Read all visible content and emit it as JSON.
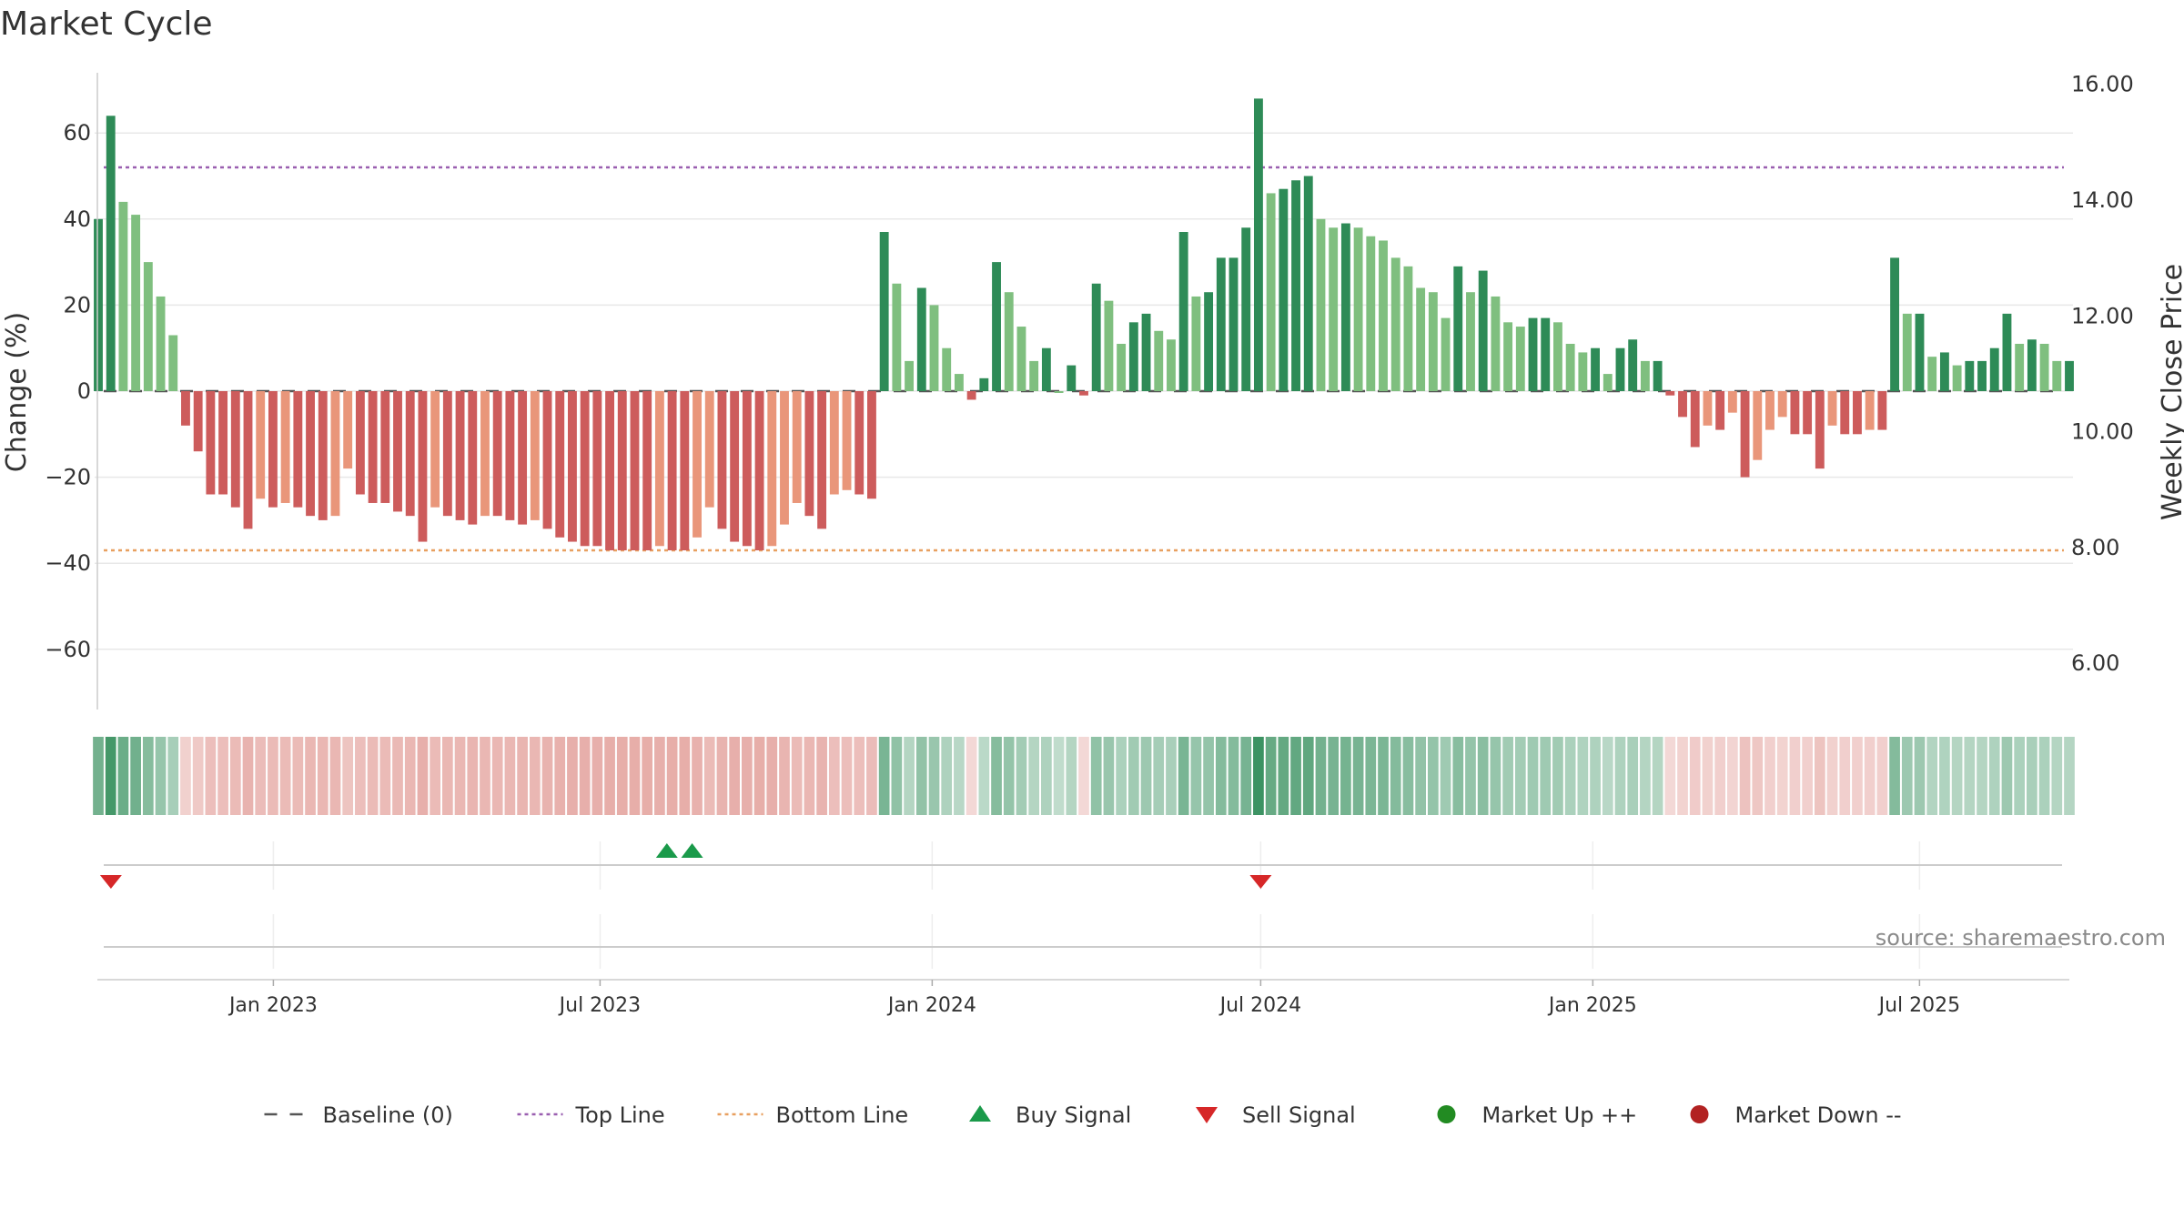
{
  "chart_data": {
    "type": "bar",
    "title": "Market Cycle",
    "ylabel_left": "Change (%)",
    "ylabel_right": "Weekly Close Price",
    "ylim_left": [
      -74,
      74
    ],
    "ylim_right": [
      5.2,
      16.2
    ],
    "yticks_left": [
      {
        "value": 60,
        "label": "60"
      },
      {
        "value": 40,
        "label": "40"
      },
      {
        "value": 20,
        "label": "20"
      },
      {
        "value": 0,
        "label": "0"
      },
      {
        "value": -20,
        "label": "−20"
      },
      {
        "value": -40,
        "label": "−40"
      },
      {
        "value": -60,
        "label": "−60"
      }
    ],
    "yticks_right": [
      {
        "value": 16,
        "label": "16.00"
      },
      {
        "value": 14,
        "label": "14.00"
      },
      {
        "value": 12,
        "label": "12.00"
      },
      {
        "value": 10,
        "label": "10.00"
      },
      {
        "value": 8,
        "label": "8.00"
      },
      {
        "value": 6,
        "label": "6.00"
      }
    ],
    "x_start": "2022-09-26",
    "x_end": "2025-09-22",
    "xticks": [
      {
        "date": "2023-01-01",
        "label": "Jan 2023"
      },
      {
        "date": "2023-07-01",
        "label": "Jul 2023"
      },
      {
        "date": "2024-01-01",
        "label": "Jan 2024"
      },
      {
        "date": "2024-07-01",
        "label": "Jul 2024"
      },
      {
        "date": "2025-01-01",
        "label": "Jan 2025"
      },
      {
        "date": "2025-07-01",
        "label": "Jul 2025"
      }
    ],
    "top_line": 52,
    "bottom_line": -37,
    "baseline": 0,
    "values": [
      40,
      64,
      44,
      41,
      30,
      22,
      13,
      -8,
      -14,
      -24,
      -24,
      -27,
      -32,
      -25,
      -27,
      -26,
      -27,
      -29,
      -30,
      -29,
      -18,
      -24,
      -26,
      -26,
      -28,
      -29,
      -35,
      -27,
      -29,
      -30,
      -31,
      -29,
      -29,
      -30,
      -31,
      -30,
      -32,
      -34,
      -35,
      -36,
      -36,
      -37,
      -37,
      -37,
      -37,
      -36,
      -37,
      -37,
      -34,
      -27,
      -32,
      -35,
      -36,
      -37,
      -36,
      -31,
      -26,
      -29,
      -32,
      -24,
      -23,
      -24,
      -25,
      37,
      25,
      7,
      24,
      20,
      10,
      4,
      -2,
      3,
      30,
      23,
      15,
      7,
      10,
      0,
      6,
      -1,
      25,
      21,
      11,
      16,
      18,
      14,
      12,
      37,
      22,
      23,
      31,
      31,
      38,
      68,
      46,
      47,
      49,
      50,
      40,
      38,
      39,
      38,
      36,
      35,
      31,
      29,
      24,
      23,
      17,
      29,
      23,
      28,
      22,
      16,
      15,
      17,
      17,
      16,
      11,
      9,
      10,
      4,
      10,
      12,
      7,
      7,
      -1,
      -6,
      -13,
      -8,
      -9,
      -5,
      -20,
      -16,
      -9,
      -6,
      -10,
      -10,
      -18,
      -8,
      -10,
      -10,
      -9,
      -9,
      31,
      18,
      18,
      8,
      9,
      6,
      7,
      7,
      10,
      18,
      11,
      12,
      11,
      7,
      7
    ],
    "buy_signals": [
      "2023-08-07",
      "2023-08-21"
    ],
    "sell_signals": [
      "2022-10-03",
      "2024-07-01"
    ],
    "source_text": "source: sharemaestro.com",
    "colors": {
      "strong_up": "#2e8b57",
      "up": "#7fbf7f",
      "down": "#cd5c5c",
      "weak_down": "#e9967a",
      "top_line": "#9a5fb0",
      "bottom_line": "#e8a060",
      "buy": "#1a9a4a",
      "sell": "#d62728",
      "market_up": "#228b22",
      "market_down": "#b22222"
    },
    "legend": [
      {
        "label": "Baseline (0)",
        "kind": "dash"
      },
      {
        "label": "Top Line",
        "kind": "dot-purple"
      },
      {
        "label": "Bottom Line",
        "kind": "dot-orange"
      },
      {
        "label": "Buy Signal",
        "kind": "triangle-up"
      },
      {
        "label": "Sell Signal",
        "kind": "triangle-down"
      },
      {
        "label": "Market Up ++",
        "kind": "circle-green"
      },
      {
        "label": "Market Down --",
        "kind": "circle-red"
      }
    ]
  }
}
